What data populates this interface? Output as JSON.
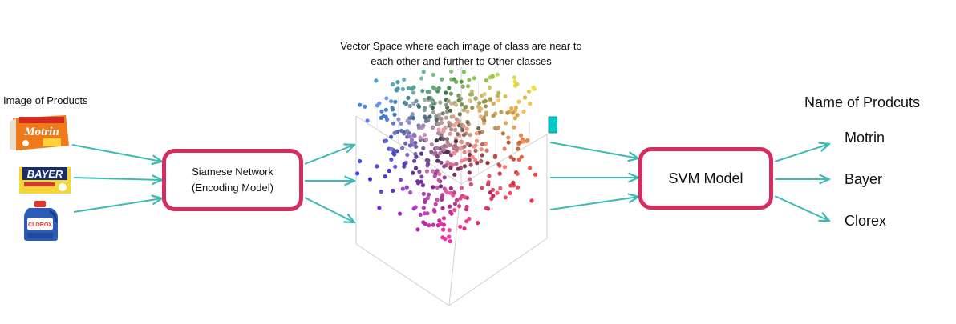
{
  "labels": {
    "products_heading": "Image of Products",
    "vector_space_caption": "Vector Space where each image of class are near to each other and further to Other classes",
    "names_heading": "Name of Prodcuts"
  },
  "boxes": {
    "siamese_line1": "Siamese Network",
    "siamese_line2": "(Encoding Model)",
    "svm": "SVM Model"
  },
  "outputs": [
    "Motrin",
    "Bayer",
    "Clorex"
  ],
  "products": {
    "motrin_brand": "Motrin",
    "bayer_brand": "BAYER",
    "clorox_brand": "CLOROX"
  },
  "colors": {
    "accent_border": "#d52d5f",
    "arrow": "#3dbbb3",
    "tooltip": "#00c7c7"
  }
}
